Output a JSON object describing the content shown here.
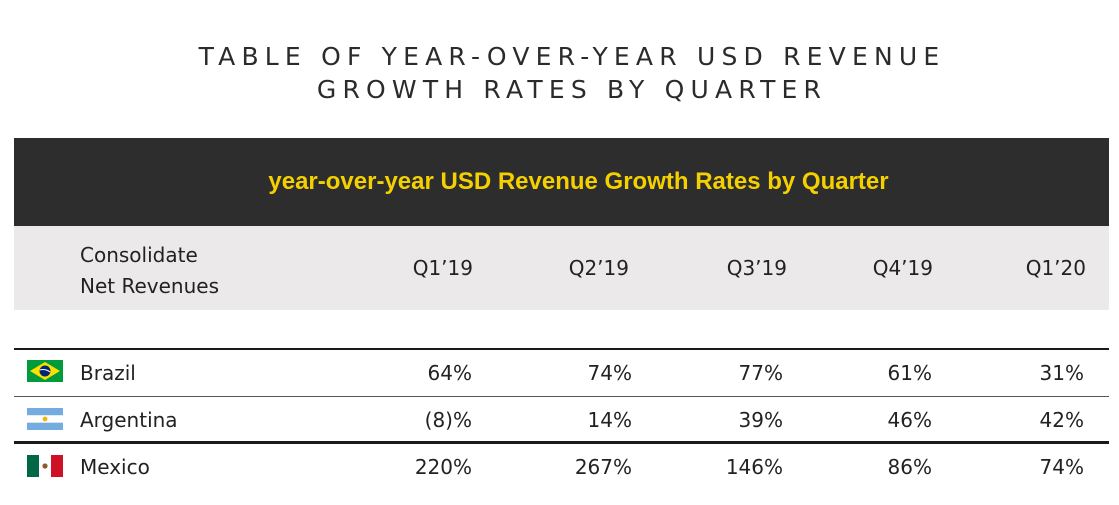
{
  "title": {
    "line1": "TABLE OF YEAR-OVER-YEAR USD REVENUE",
    "line2": "GROWTH RATES BY QUARTER"
  },
  "banner": "year-over-year USD Revenue Growth Rates by Quarter",
  "header": {
    "label_line1": "Consolidate",
    "label_line2": "Net Revenues",
    "quarters": [
      "Q1’19",
      "Q2’19",
      "Q3’19",
      "Q4’19",
      "Q1’20"
    ]
  },
  "rows": [
    {
      "country": "Brazil",
      "flag_icon": "brazil-flag-icon",
      "values": [
        "64%",
        "74%",
        "77%",
        "61%",
        "31%"
      ]
    },
    {
      "country": "Argentina",
      "flag_icon": "argentina-flag-icon",
      "values": [
        "(8)%",
        "14%",
        "39%",
        "46%",
        "42%"
      ]
    },
    {
      "country": "Mexico",
      "flag_icon": "mexico-flag-icon",
      "values": [
        "220%",
        "267%",
        "146%",
        "86%",
        "74%"
      ]
    }
  ],
  "colors": {
    "banner_bg": "#2d2d2d",
    "banner_text": "#f5d000",
    "header_bg": "#ebe9e9"
  }
}
